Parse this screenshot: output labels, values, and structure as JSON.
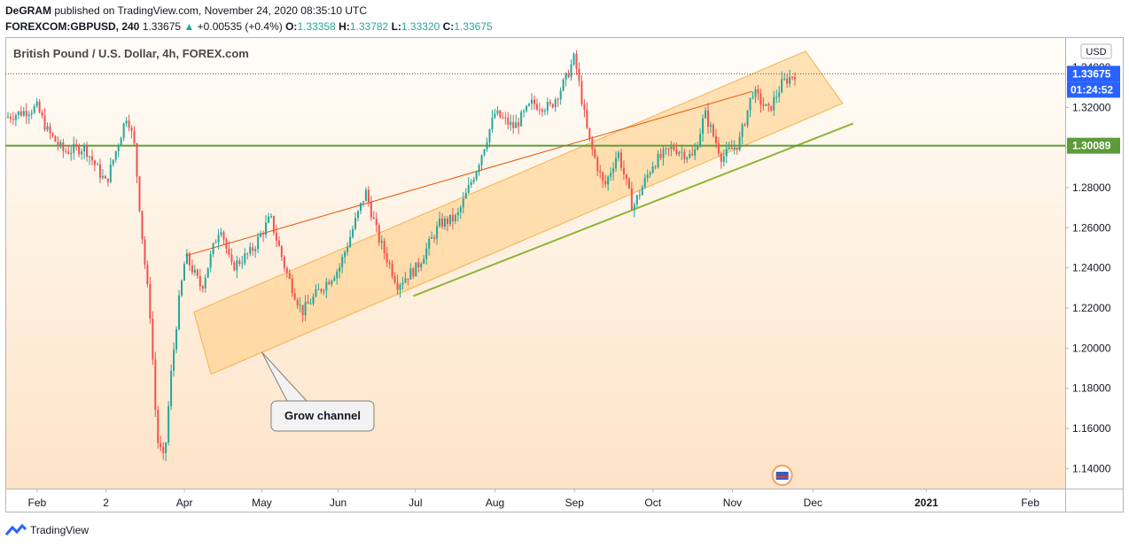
{
  "header": {
    "author": "DeGRAM",
    "published_text": "published on TradingView.com, November 24, 2020 08:35:10 UTC",
    "symbol": "FOREXCOM:GBPUSD, 240",
    "last": "1.33675",
    "change": "+0.00535 (+0.4%)",
    "o_label": "O:",
    "o_value": "1.33358",
    "h_label": "H:",
    "h_value": "1.33782",
    "l_label": "L:",
    "l_value": "1.33320",
    "c_label": "C:",
    "c_value": "1.33675"
  },
  "chart_data": {
    "type": "candlestick",
    "title": "British Pound / U.S. Dollar, 4h, FOREX.com",
    "currency": "USD",
    "ylim": [
      1.13,
      1.355
    ],
    "y_ticks": [
      "1.14000",
      "1.16000",
      "1.18000",
      "1.20000",
      "1.22000",
      "1.24000",
      "1.26000",
      "1.28000",
      "1.30000",
      "1.32000",
      "1.34000"
    ],
    "x_ticks": [
      {
        "label": "Feb",
        "t": 0.03
      },
      {
        "label": "2",
        "t": 0.095
      },
      {
        "label": "Apr",
        "t": 0.169
      },
      {
        "label": "May",
        "t": 0.242
      },
      {
        "label": "Jun",
        "t": 0.314
      },
      {
        "label": "Jul",
        "t": 0.387
      },
      {
        "label": "Aug",
        "t": 0.462
      },
      {
        "label": "Sep",
        "t": 0.537
      },
      {
        "label": "Oct",
        "t": 0.611
      },
      {
        "label": "Nov",
        "t": 0.686
      },
      {
        "label": "Dec",
        "t": 0.762
      },
      {
        "label": "2021",
        "t": 0.869
      },
      {
        "label": "Feb",
        "t": 0.967
      }
    ],
    "price_path": [
      [
        0.0,
        1.315
      ],
      [
        0.03,
        1.32
      ],
      [
        0.04,
        1.308
      ],
      [
        0.055,
        1.298
      ],
      [
        0.075,
        1.3
      ],
      [
        0.095,
        1.282
      ],
      [
        0.115,
        1.317
      ],
      [
        0.122,
        1.3
      ],
      [
        0.13,
        1.25
      ],
      [
        0.137,
        1.215
      ],
      [
        0.143,
        1.155
      ],
      [
        0.15,
        1.143
      ],
      [
        0.156,
        1.185
      ],
      [
        0.163,
        1.22
      ],
      [
        0.17,
        1.246
      ],
      [
        0.185,
        1.23
      ],
      [
        0.203,
        1.262
      ],
      [
        0.213,
        1.24
      ],
      [
        0.232,
        1.248
      ],
      [
        0.25,
        1.265
      ],
      [
        0.265,
        1.238
      ],
      [
        0.28,
        1.218
      ],
      [
        0.295,
        1.228
      ],
      [
        0.315,
        1.24
      ],
      [
        0.34,
        1.278
      ],
      [
        0.352,
        1.255
      ],
      [
        0.37,
        1.232
      ],
      [
        0.388,
        1.24
      ],
      [
        0.41,
        1.262
      ],
      [
        0.426,
        1.265
      ],
      [
        0.445,
        1.29
      ],
      [
        0.462,
        1.317
      ],
      [
        0.48,
        1.31
      ],
      [
        0.497,
        1.322
      ],
      [
        0.514,
        1.32
      ],
      [
        0.528,
        1.333
      ],
      [
        0.537,
        1.345
      ],
      [
        0.55,
        1.305
      ],
      [
        0.565,
        1.28
      ],
      [
        0.578,
        1.298
      ],
      [
        0.592,
        1.27
      ],
      [
        0.611,
        1.292
      ],
      [
        0.63,
        1.3
      ],
      [
        0.649,
        1.295
      ],
      [
        0.66,
        1.317
      ],
      [
        0.676,
        1.295
      ],
      [
        0.692,
        1.302
      ],
      [
        0.705,
        1.328
      ],
      [
        0.72,
        1.318
      ],
      [
        0.733,
        1.332
      ],
      [
        0.745,
        1.337
      ]
    ],
    "last_price": "1.33675",
    "countdown": "01:24:52",
    "support_level": "1.30089",
    "channel": {
      "upper": [
        [
          0.178,
          1.218
        ],
        [
          0.755,
          1.348
        ]
      ],
      "lower": [
        [
          0.194,
          1.187
        ],
        [
          0.79,
          1.322
        ]
      ],
      "label": "Grow channel"
    },
    "colors": {
      "up": "#26a69a",
      "down": "#ef5350",
      "channel_fill": "#ffcc80",
      "support": "#5d9b3a",
      "last_price_bg": "#2962ff"
    }
  },
  "footer": {
    "brand": "TradingView"
  }
}
